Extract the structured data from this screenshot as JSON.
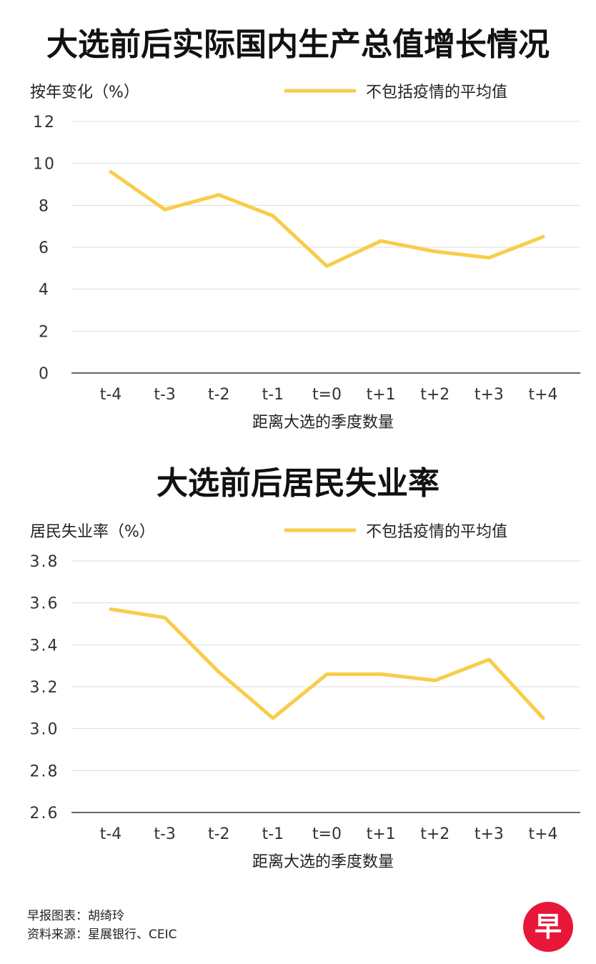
{
  "footer": {
    "credit_label": "早报图表：",
    "credit_value": "胡绮玲",
    "source_label": "资料来源：",
    "source_value": "星展银行、CEIC"
  },
  "logo": {
    "glyph": "早",
    "color": "#e8173a"
  },
  "chart_data": [
    {
      "type": "line",
      "title": "大选前后实际国内生产总值增长情况",
      "ylabel": "按年变化（%）",
      "xlabel": "距离大选的季度数量",
      "categories": [
        "t-4",
        "t-3",
        "t-2",
        "t-1",
        "t=0",
        "t+1",
        "t+2",
        "t+3",
        "t+4"
      ],
      "series": [
        {
          "name": "不包括疫情的平均值",
          "color": "#f7cd4a",
          "values": [
            9.6,
            7.8,
            8.5,
            7.5,
            5.1,
            6.3,
            5.8,
            5.5,
            6.5
          ]
        }
      ],
      "ylim": [
        0,
        12
      ],
      "yticks": [
        "0",
        "2",
        "4",
        "6",
        "8",
        "10",
        "12"
      ],
      "grid": true,
      "legend": "top-right"
    },
    {
      "type": "line",
      "title": "大选前后居民失业率",
      "ylabel": "居民失业率（%）",
      "xlabel": "距离大选的季度数量",
      "categories": [
        "t-4",
        "t-3",
        "t-2",
        "t-1",
        "t=0",
        "t+1",
        "t+2",
        "t+3",
        "t+4"
      ],
      "series": [
        {
          "name": "不包括疫情的平均值",
          "color": "#f7cd4a",
          "values": [
            3.57,
            3.53,
            3.27,
            3.05,
            3.26,
            3.26,
            3.23,
            3.33,
            3.05
          ]
        }
      ],
      "ylim": [
        2.6,
        3.8
      ],
      "yticks": [
        "2.6",
        "2.8",
        "3.0",
        "3.2",
        "3.4",
        "3.6",
        "3.8"
      ],
      "grid": true,
      "legend": "top-right"
    }
  ]
}
